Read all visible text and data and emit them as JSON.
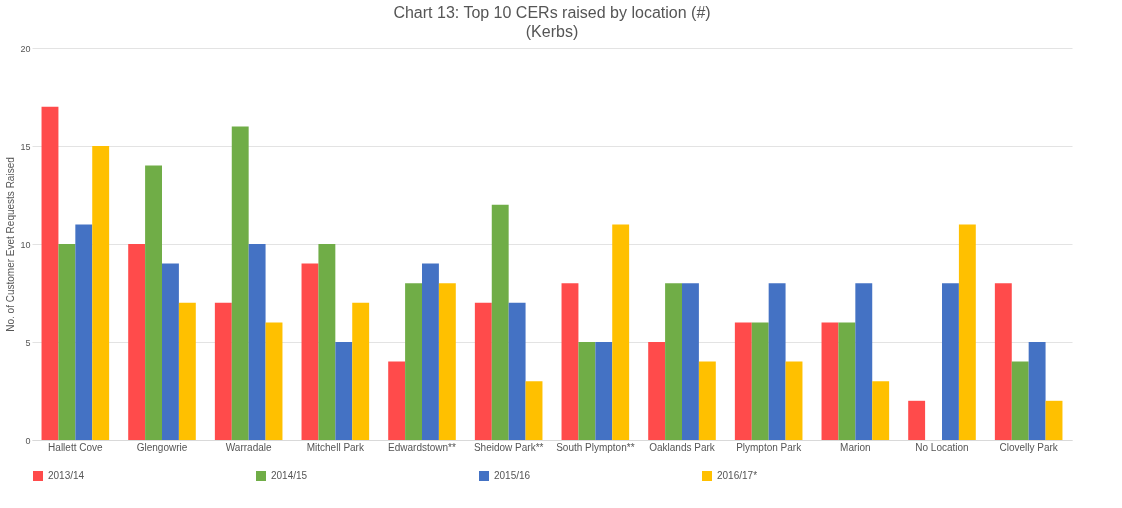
{
  "chart_data": {
    "type": "bar",
    "title": "Chart 13: Top 10 CERs raised by location (#)",
    "subtitle": "(Kerbs)",
    "ylabel": "No. of Customer Evet Requests Raised",
    "categories": [
      "Hallett Cove",
      "Glengowrie",
      "Warradale",
      "Mitchell Park",
      "Edwardstown**",
      "Sheidow Park**",
      "South Plympton**",
      "Oaklands Park",
      "Plympton Park",
      "Marion",
      "No Location",
      "Clovelly Park"
    ],
    "series": [
      {
        "name": "2013/14",
        "color": "#ff4b4b",
        "values": [
          17,
          10,
          7,
          9,
          4,
          7,
          8,
          5,
          6,
          6,
          2,
          8
        ]
      },
      {
        "name": "2014/15",
        "color": "#70ad47",
        "values": [
          10,
          14,
          16,
          10,
          8,
          12,
          5,
          8,
          6,
          6,
          null,
          4
        ]
      },
      {
        "name": "2015/16",
        "color": "#4472c4",
        "values": [
          11,
          9,
          10,
          5,
          9,
          7,
          5,
          8,
          8,
          8,
          8,
          5
        ]
      },
      {
        "name": "2016/17*",
        "color": "#ffc000",
        "values": [
          15,
          7,
          6,
          7,
          8,
          3,
          11,
          4,
          4,
          3,
          11,
          2
        ]
      }
    ],
    "ylim": [
      0,
      20
    ],
    "yticks": [
      0,
      5,
      10,
      15,
      20
    ],
    "grid": "y",
    "legend": "bottom"
  }
}
